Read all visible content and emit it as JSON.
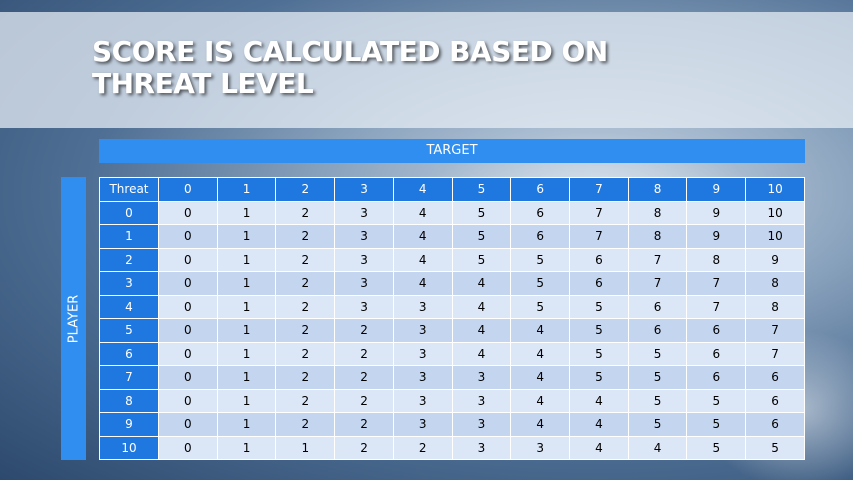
{
  "title": "SCORE IS CALCULATED BASED ON THREAT LEVEL",
  "column_group": "TARGET",
  "row_group": "PLAYER",
  "table": {
    "header": [
      "Threat",
      0,
      1,
      2,
      3,
      4,
      5,
      6,
      7,
      8,
      9,
      10
    ],
    "rows": [
      [
        0,
        0,
        1,
        2,
        3,
        4,
        5,
        6,
        7,
        8,
        9,
        10
      ],
      [
        1,
        0,
        1,
        2,
        3,
        4,
        5,
        6,
        7,
        8,
        9,
        10
      ],
      [
        2,
        0,
        1,
        2,
        3,
        4,
        5,
        5,
        6,
        7,
        8,
        9
      ],
      [
        3,
        0,
        1,
        2,
        3,
        4,
        4,
        5,
        6,
        7,
        7,
        8
      ],
      [
        4,
        0,
        1,
        2,
        3,
        3,
        4,
        5,
        5,
        6,
        7,
        8
      ],
      [
        5,
        0,
        1,
        2,
        2,
        3,
        4,
        4,
        5,
        6,
        6,
        7
      ],
      [
        6,
        0,
        1,
        2,
        2,
        3,
        4,
        4,
        5,
        5,
        6,
        7
      ],
      [
        7,
        0,
        1,
        2,
        2,
        3,
        3,
        4,
        5,
        5,
        6,
        6
      ],
      [
        8,
        0,
        1,
        2,
        2,
        3,
        3,
        4,
        4,
        5,
        5,
        6
      ],
      [
        9,
        0,
        1,
        2,
        2,
        3,
        3,
        4,
        4,
        5,
        5,
        6
      ],
      [
        10,
        0,
        1,
        1,
        2,
        2,
        3,
        3,
        4,
        4,
        5,
        5
      ]
    ]
  }
}
